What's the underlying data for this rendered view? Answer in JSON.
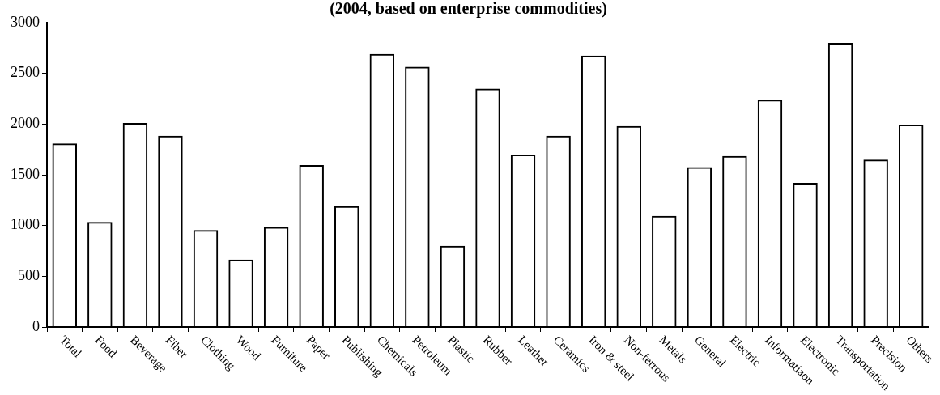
{
  "chart_data": {
    "type": "bar",
    "title": "(2004, based on enterprise commodities)",
    "categories": [
      "Total",
      "Food",
      "Beverage",
      "Fiber",
      "Clothing",
      "Wood",
      "Furniture",
      "Paper",
      "Publishing",
      "Chemicals",
      "Petroleum",
      "Plastic",
      "Rubber",
      "Leather",
      "Ceramics",
      "Iron & steel",
      "Non-ferrous",
      "Metals",
      "General",
      "Electric",
      "Informatiaon",
      "Electronic",
      "Transportation",
      "Precision",
      "Others"
    ],
    "values": [
      1810,
      1035,
      2010,
      1885,
      955,
      665,
      985,
      1595,
      1190,
      2690,
      2565,
      800,
      2350,
      1700,
      1885,
      2675,
      1980,
      1095,
      1575,
      1685,
      2240,
      1420,
      2800,
      1650,
      1995
    ],
    "color": "#000000",
    "ylim": [
      0,
      3000
    ],
    "yticks": [
      0,
      500,
      1000,
      1500,
      2000,
      2500,
      3000
    ],
    "grid": false,
    "legend": false
  }
}
